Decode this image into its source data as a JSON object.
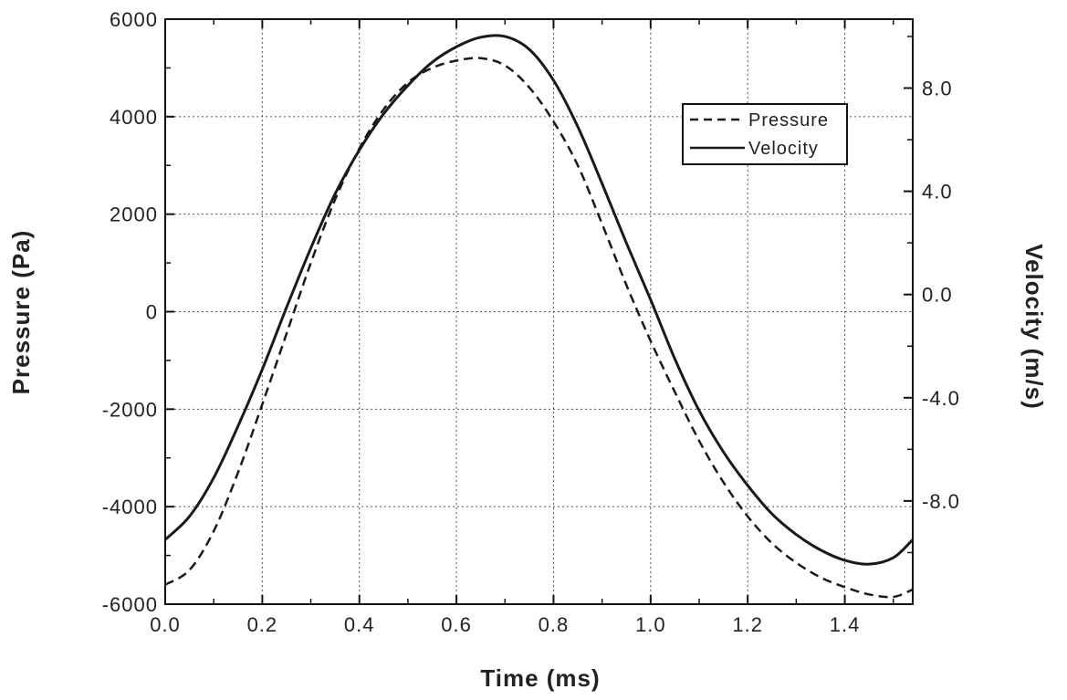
{
  "chart_data": {
    "type": "line",
    "title": "",
    "xlabel": "Time  (ms)",
    "ylabel": "Pressure (Pa)",
    "y2label": "Velocity  (m/s)",
    "xlim": [
      0.0,
      1.54
    ],
    "ylim": [
      -6000,
      6000
    ],
    "y2lim": [
      -12.0,
      10.67
    ],
    "x_ticks": [
      0.0,
      0.2,
      0.4,
      0.6,
      0.8,
      1.0,
      1.2,
      1.4
    ],
    "x_tick_labels": [
      "0.0",
      "0.2",
      "0.4",
      "0.6",
      "0.8",
      "1.0",
      "1.2",
      "1.4"
    ],
    "y_ticks": [
      -6000,
      -4000,
      -2000,
      0,
      2000,
      4000,
      6000
    ],
    "y_tick_labels": [
      "-6000",
      "-4000",
      "-2000",
      "0",
      "2000",
      "4000",
      "6000"
    ],
    "y2_ticks": [
      -8.0,
      -4.0,
      0.0,
      4.0,
      8.0
    ],
    "y2_tick_labels": [
      "-8.0",
      "-4.0",
      "0.0",
      "4.0",
      "8.0"
    ],
    "grid": true,
    "legend_position": "top-right",
    "series": [
      {
        "name": "Pressure",
        "axis": "left",
        "style": "dashed",
        "color": "#1a1a1a",
        "x": [
          0.0,
          0.05,
          0.1,
          0.15,
          0.2,
          0.25,
          0.3,
          0.35,
          0.4,
          0.45,
          0.5,
          0.55,
          0.6,
          0.65,
          0.7,
          0.75,
          0.8,
          0.85,
          0.9,
          0.95,
          1.0,
          1.05,
          1.1,
          1.15,
          1.2,
          1.25,
          1.3,
          1.35,
          1.4,
          1.45,
          1.5,
          1.54
        ],
        "values": [
          -5600,
          -5300,
          -4500,
          -3300,
          -1900,
          -450,
          1000,
          2300,
          3350,
          4150,
          4700,
          5000,
          5150,
          5200,
          5050,
          4600,
          3900,
          3000,
          1800,
          550,
          -600,
          -1650,
          -2650,
          -3500,
          -4200,
          -4750,
          -5150,
          -5450,
          -5650,
          -5800,
          -5850,
          -5700
        ]
      },
      {
        "name": "Velocity",
        "axis": "right",
        "style": "solid",
        "color": "#1a1a1a",
        "x": [
          0.0,
          0.05,
          0.1,
          0.15,
          0.2,
          0.25,
          0.3,
          0.35,
          0.4,
          0.45,
          0.5,
          0.55,
          0.6,
          0.65,
          0.7,
          0.75,
          0.8,
          0.85,
          0.9,
          0.95,
          1.0,
          1.05,
          1.1,
          1.15,
          1.2,
          1.25,
          1.3,
          1.35,
          1.4,
          1.45,
          1.5,
          1.54
        ],
        "values": [
          -9.5,
          -8.6,
          -7.1,
          -5.1,
          -2.9,
          -0.5,
          1.8,
          3.9,
          5.6,
          7.0,
          8.1,
          9.0,
          9.6,
          9.97,
          10.0,
          9.5,
          8.3,
          6.5,
          4.3,
          2.0,
          -0.2,
          -2.5,
          -4.5,
          -6.1,
          -7.4,
          -8.5,
          -9.3,
          -9.9,
          -10.3,
          -10.45,
          -10.2,
          -9.5
        ]
      }
    ]
  }
}
